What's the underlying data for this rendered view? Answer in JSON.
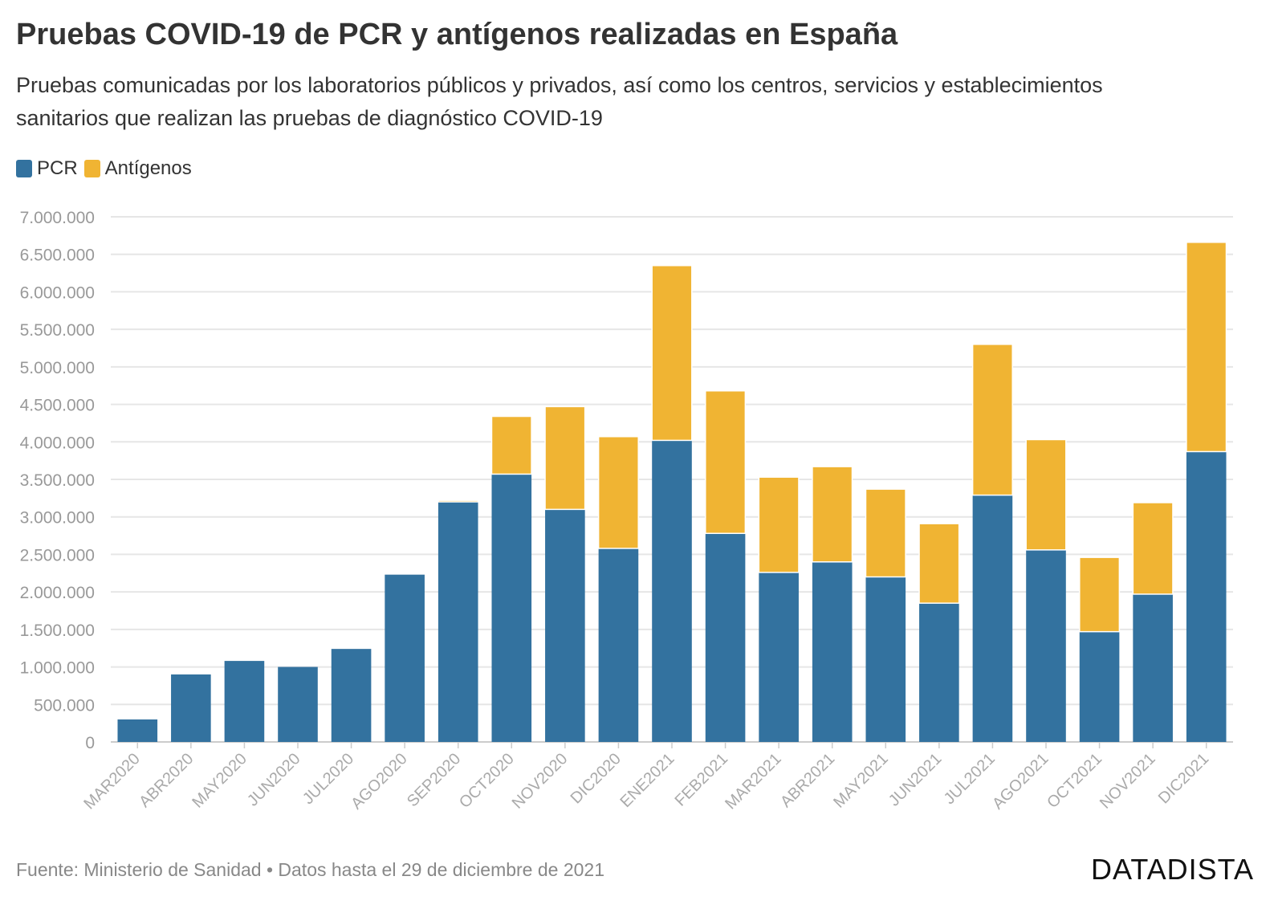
{
  "header": {
    "title": "Pruebas COVID-19 de PCR y antígenos realizadas en España",
    "subtitle": "Pruebas comunicadas por los laboratorios públicos y privados, así como los centros, servicios y establecimientos sanitarios que realizan las pruebas de diagnóstico COVID-19"
  },
  "footer": {
    "source": "Fuente: Ministerio de Sanidad • Datos hasta el 29 de diciembre de 2021",
    "brand": "DATADISTA"
  },
  "chart_data": {
    "type": "bar",
    "stacked": true,
    "title": "Pruebas COVID-19 de PCR y antígenos realizadas en España",
    "xlabel": "",
    "ylabel": "",
    "ylim": [
      0,
      7000000
    ],
    "yticks": [
      0,
      500000,
      1000000,
      1500000,
      2000000,
      2500000,
      3000000,
      3500000,
      4000000,
      4500000,
      5000000,
      5500000,
      6000000,
      6500000,
      7000000
    ],
    "ytick_labels": [
      "0",
      "500.000",
      "1.000.000",
      "1.500.000",
      "2.000.000",
      "2.500.000",
      "3.000.000",
      "3.500.000",
      "4.000.000",
      "4.500.000",
      "5.000.000",
      "5.500.000",
      "6.000.000",
      "6.500.000",
      "7.000.000"
    ],
    "grid": true,
    "legend_position": "top-left",
    "categories": [
      "MAR2020",
      "ABR2020",
      "MAY2020",
      "JUN2020",
      "JUL2020",
      "AGO2020",
      "SEP2020",
      "OCT2020",
      "NOV2020",
      "DIC2020",
      "ENE2021",
      "FEB2021",
      "MAR2021",
      "ABR2021",
      "MAY2021",
      "JUN2021",
      "JUL2021",
      "AGO2021",
      "OCT2021",
      "NOV2021",
      "DIC2021"
    ],
    "series": [
      {
        "name": "PCR",
        "color": "#33729f",
        "values": [
          300000,
          900000,
          1080000,
          1000000,
          1240000,
          2230000,
          3200000,
          3570000,
          3100000,
          2580000,
          4020000,
          2780000,
          2260000,
          2400000,
          2200000,
          1850000,
          3290000,
          2560000,
          1470000,
          1970000,
          3870000
        ]
      },
      {
        "name": "Antígenos",
        "color": "#f0b433",
        "values": [
          0,
          0,
          0,
          0,
          0,
          0,
          20000,
          770000,
          1370000,
          1490000,
          2330000,
          1900000,
          1270000,
          1270000,
          1170000,
          1060000,
          2010000,
          1470000,
          990000,
          1220000,
          2790000
        ]
      }
    ]
  }
}
